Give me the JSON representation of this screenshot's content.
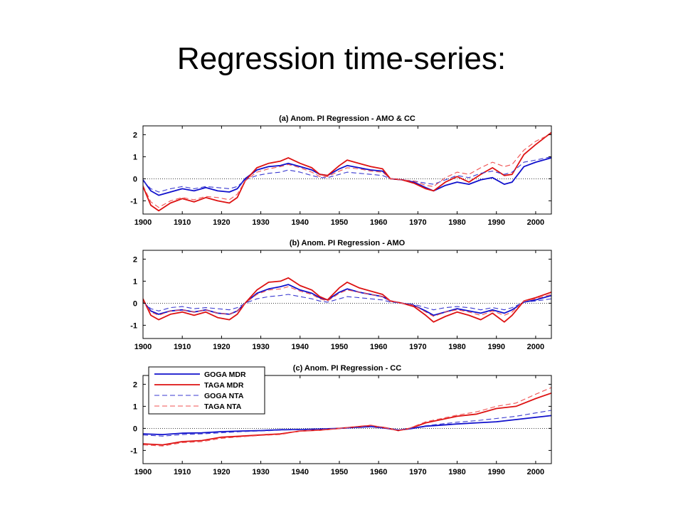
{
  "slide": {
    "title": "Regression time-series:"
  },
  "legend": [
    {
      "label": "GOGA MDR",
      "color": "#1010cc",
      "dash": false
    },
    {
      "label": "TAGA MDR",
      "color": "#dd1111",
      "dash": false
    },
    {
      "label": "GOGA NTA",
      "color": "#3a3ad0",
      "dash": true
    },
    {
      "label": "TAGA NTA",
      "color": "#f05050",
      "dash": true
    }
  ],
  "chart_data": [
    {
      "type": "line",
      "title": "(a) Anom. PI Regression - AMO & CC",
      "xlim": [
        1900,
        2004
      ],
      "ylim": [
        -1.6,
        2.4
      ],
      "xticks": [
        1900,
        1910,
        1920,
        1930,
        1940,
        1950,
        1960,
        1970,
        1980,
        1990,
        2000
      ],
      "yticks": [
        -1,
        0,
        1,
        2
      ],
      "zero_line": "dotted",
      "series": [
        {
          "legend": "GOGA MDR",
          "x": [
            1900,
            1902,
            1904,
            1907,
            1910,
            1913,
            1916,
            1919,
            1922,
            1924,
            1926,
            1929,
            1932,
            1935,
            1937,
            1940,
            1943,
            1945,
            1947,
            1950,
            1952,
            1955,
            1958,
            1961,
            1963,
            1966,
            1969,
            1972,
            1974,
            1977,
            1980,
            1983,
            1986,
            1989,
            1992,
            1994,
            1997,
            2000,
            2004
          ],
          "values": [
            -0.05,
            -0.55,
            -0.75,
            -0.6,
            -0.45,
            -0.55,
            -0.4,
            -0.55,
            -0.6,
            -0.45,
            0.0,
            0.4,
            0.55,
            0.6,
            0.7,
            0.55,
            0.4,
            0.2,
            0.15,
            0.45,
            0.6,
            0.5,
            0.4,
            0.35,
            0.0,
            -0.05,
            -0.15,
            -0.4,
            -0.55,
            -0.3,
            -0.15,
            -0.25,
            -0.05,
            0.05,
            -0.25,
            -0.15,
            0.55,
            0.75,
            0.95
          ]
        },
        {
          "legend": "TAGA MDR",
          "x": [
            1900,
            1902,
            1904,
            1907,
            1910,
            1913,
            1916,
            1919,
            1922,
            1924,
            1926,
            1929,
            1932,
            1935,
            1937,
            1940,
            1943,
            1945,
            1947,
            1950,
            1952,
            1955,
            1958,
            1961,
            1963,
            1966,
            1969,
            1972,
            1974,
            1977,
            1980,
            1983,
            1986,
            1989,
            1992,
            1994,
            1997,
            2000,
            2004
          ],
          "values": [
            -0.35,
            -1.2,
            -1.45,
            -1.1,
            -0.9,
            -1.05,
            -0.85,
            -1.0,
            -1.1,
            -0.85,
            -0.1,
            0.5,
            0.7,
            0.8,
            0.95,
            0.7,
            0.5,
            0.2,
            0.15,
            0.6,
            0.85,
            0.7,
            0.55,
            0.45,
            0.0,
            -0.05,
            -0.2,
            -0.45,
            -0.55,
            -0.15,
            0.1,
            -0.15,
            0.2,
            0.5,
            0.15,
            0.2,
            1.1,
            1.55,
            2.1
          ]
        },
        {
          "legend": "GOGA NTA",
          "x": [
            1900,
            1902,
            1904,
            1907,
            1910,
            1913,
            1916,
            1919,
            1922,
            1924,
            1926,
            1929,
            1932,
            1935,
            1937,
            1940,
            1943,
            1945,
            1947,
            1950,
            1952,
            1955,
            1958,
            1961,
            1963,
            1966,
            1969,
            1972,
            1974,
            1977,
            1980,
            1983,
            1986,
            1989,
            1992,
            1994,
            1997,
            2000,
            2004
          ],
          "values": [
            -0.1,
            -0.45,
            -0.6,
            -0.45,
            -0.35,
            -0.45,
            -0.35,
            -0.4,
            -0.45,
            -0.35,
            -0.05,
            0.15,
            0.25,
            0.3,
            0.4,
            0.3,
            0.15,
            0.05,
            0.05,
            0.2,
            0.3,
            0.25,
            0.2,
            0.15,
            0.0,
            -0.05,
            -0.1,
            -0.2,
            -0.25,
            -0.05,
            0.15,
            0.05,
            0.25,
            0.35,
            0.2,
            0.3,
            0.75,
            0.85,
            1.0
          ]
        },
        {
          "legend": "TAGA NTA",
          "x": [
            1900,
            1902,
            1904,
            1907,
            1910,
            1913,
            1916,
            1919,
            1922,
            1924,
            1926,
            1929,
            1932,
            1935,
            1937,
            1940,
            1943,
            1945,
            1947,
            1950,
            1952,
            1955,
            1958,
            1961,
            1963,
            1966,
            1969,
            1972,
            1974,
            1977,
            1980,
            1983,
            1986,
            1989,
            1992,
            1994,
            1997,
            2000,
            2004
          ],
          "values": [
            -0.3,
            -1.05,
            -1.3,
            -1.0,
            -0.85,
            -0.95,
            -0.8,
            -0.85,
            -0.95,
            -0.7,
            -0.1,
            0.3,
            0.45,
            0.55,
            0.65,
            0.5,
            0.3,
            0.1,
            0.1,
            0.35,
            0.5,
            0.45,
            0.35,
            0.3,
            0.0,
            -0.05,
            -0.1,
            -0.3,
            -0.35,
            0.05,
            0.3,
            0.2,
            0.5,
            0.75,
            0.55,
            0.65,
            1.3,
            1.7,
            2.05
          ]
        }
      ]
    },
    {
      "type": "line",
      "title": "(b) Anom. PI Regression - AMO",
      "xlim": [
        1900,
        2004
      ],
      "ylim": [
        -1.6,
        2.4
      ],
      "xticks": [
        1900,
        1910,
        1920,
        1930,
        1940,
        1950,
        1960,
        1970,
        1980,
        1990,
        2000
      ],
      "yticks": [
        -1,
        0,
        1,
        2
      ],
      "zero_line": "dotted",
      "series": [
        {
          "legend": "GOGA MDR",
          "x": [
            1900,
            1902,
            1904,
            1907,
            1910,
            1913,
            1916,
            1919,
            1922,
            1924,
            1926,
            1929,
            1932,
            1935,
            1937,
            1940,
            1943,
            1945,
            1947,
            1950,
            1952,
            1955,
            1958,
            1961,
            1963,
            1966,
            1969,
            1972,
            1974,
            1977,
            1980,
            1983,
            1986,
            1989,
            1992,
            1994,
            1997,
            2000,
            2004
          ],
          "values": [
            0.1,
            -0.35,
            -0.5,
            -0.35,
            -0.3,
            -0.4,
            -0.3,
            -0.45,
            -0.5,
            -0.35,
            0.0,
            0.45,
            0.65,
            0.75,
            0.85,
            0.6,
            0.45,
            0.25,
            0.15,
            0.5,
            0.65,
            0.5,
            0.4,
            0.3,
            0.1,
            0.0,
            -0.1,
            -0.35,
            -0.55,
            -0.4,
            -0.25,
            -0.35,
            -0.45,
            -0.3,
            -0.45,
            -0.3,
            0.05,
            0.15,
            0.35
          ]
        },
        {
          "legend": "TAGA MDR",
          "x": [
            1900,
            1902,
            1904,
            1907,
            1910,
            1913,
            1916,
            1919,
            1922,
            1924,
            1926,
            1929,
            1932,
            1935,
            1937,
            1940,
            1943,
            1945,
            1947,
            1950,
            1952,
            1955,
            1958,
            1961,
            1963,
            1966,
            1969,
            1972,
            1974,
            1977,
            1980,
            1983,
            1986,
            1989,
            1992,
            1994,
            1997,
            2000,
            2004
          ],
          "values": [
            0.2,
            -0.55,
            -0.75,
            -0.5,
            -0.4,
            -0.55,
            -0.4,
            -0.65,
            -0.75,
            -0.5,
            0.0,
            0.6,
            0.95,
            1.0,
            1.15,
            0.8,
            0.6,
            0.3,
            0.15,
            0.7,
            0.95,
            0.7,
            0.55,
            0.4,
            0.1,
            0.0,
            -0.15,
            -0.55,
            -0.85,
            -0.6,
            -0.4,
            -0.55,
            -0.75,
            -0.45,
            -0.85,
            -0.55,
            0.1,
            0.25,
            0.5
          ]
        },
        {
          "legend": "GOGA NTA",
          "x": [
            1900,
            1902,
            1904,
            1907,
            1910,
            1913,
            1916,
            1919,
            1922,
            1924,
            1926,
            1929,
            1932,
            1935,
            1937,
            1940,
            1943,
            1945,
            1947,
            1950,
            1952,
            1955,
            1958,
            1961,
            1963,
            1966,
            1969,
            1972,
            1974,
            1977,
            1980,
            1983,
            1986,
            1989,
            1992,
            1994,
            1997,
            2000,
            2004
          ],
          "values": [
            0.05,
            -0.25,
            -0.35,
            -0.2,
            -0.15,
            -0.25,
            -0.2,
            -0.25,
            -0.3,
            -0.2,
            0.0,
            0.2,
            0.3,
            0.35,
            0.4,
            0.3,
            0.2,
            0.1,
            0.05,
            0.2,
            0.3,
            0.25,
            0.2,
            0.15,
            0.05,
            0.0,
            -0.05,
            -0.2,
            -0.3,
            -0.2,
            -0.15,
            -0.2,
            -0.3,
            -0.2,
            -0.3,
            -0.2,
            0.05,
            0.1,
            0.2
          ]
        },
        {
          "legend": "TAGA NTA",
          "x": [
            1900,
            1902,
            1904,
            1907,
            1910,
            1913,
            1916,
            1919,
            1922,
            1924,
            1926,
            1929,
            1932,
            1935,
            1937,
            1940,
            1943,
            1945,
            1947,
            1950,
            1952,
            1955,
            1958,
            1961,
            1963,
            1966,
            1969,
            1972,
            1974,
            1977,
            1980,
            1983,
            1986,
            1989,
            1992,
            1994,
            1997,
            2000,
            2004
          ],
          "values": [
            0.1,
            -0.4,
            -0.55,
            -0.35,
            -0.3,
            -0.4,
            -0.3,
            -0.45,
            -0.5,
            -0.35,
            0.0,
            0.4,
            0.6,
            0.65,
            0.75,
            0.55,
            0.4,
            0.2,
            0.1,
            0.45,
            0.6,
            0.5,
            0.4,
            0.3,
            0.1,
            0.0,
            -0.1,
            -0.4,
            -0.6,
            -0.4,
            -0.3,
            -0.4,
            -0.55,
            -0.35,
            -0.55,
            -0.4,
            0.1,
            0.2,
            0.4
          ]
        }
      ]
    },
    {
      "type": "line",
      "title": "(c) Anom. PI Regression - CC",
      "xlim": [
        1900,
        2004
      ],
      "ylim": [
        -1.6,
        2.4
      ],
      "xticks": [
        1900,
        1910,
        1920,
        1930,
        1940,
        1950,
        1960,
        1970,
        1980,
        1990,
        2000
      ],
      "yticks": [
        -1,
        0,
        1,
        2
      ],
      "zero_line": "dotted",
      "legend_position": "top-left",
      "series": [
        {
          "legend": "GOGA MDR",
          "x": [
            1900,
            1905,
            1910,
            1915,
            1920,
            1925,
            1930,
            1935,
            1940,
            1945,
            1950,
            1955,
            1958,
            1962,
            1965,
            1968,
            1972,
            1976,
            1980,
            1985,
            1990,
            1995,
            2000,
            2004
          ],
          "values": [
            -0.25,
            -0.28,
            -0.22,
            -0.2,
            -0.15,
            -0.12,
            -0.1,
            -0.06,
            -0.05,
            -0.03,
            0.0,
            0.05,
            0.08,
            0.0,
            -0.08,
            -0.02,
            0.1,
            0.15,
            0.2,
            0.25,
            0.3,
            0.4,
            0.5,
            0.58
          ]
        },
        {
          "legend": "TAGA MDR",
          "x": [
            1900,
            1905,
            1910,
            1915,
            1920,
            1925,
            1930,
            1935,
            1940,
            1945,
            1950,
            1955,
            1958,
            1962,
            1965,
            1968,
            1972,
            1976,
            1980,
            1985,
            1990,
            1995,
            2000,
            2004
          ],
          "values": [
            -0.7,
            -0.75,
            -0.6,
            -0.55,
            -0.4,
            -0.35,
            -0.3,
            -0.25,
            -0.12,
            -0.08,
            0.0,
            0.08,
            0.12,
            0.02,
            -0.1,
            0.0,
            0.25,
            0.4,
            0.55,
            0.65,
            0.9,
            1.0,
            1.35,
            1.6
          ]
        },
        {
          "legend": "GOGA NTA",
          "x": [
            1900,
            1905,
            1910,
            1915,
            1920,
            1925,
            1930,
            1935,
            1940,
            1945,
            1950,
            1955,
            1958,
            1962,
            1965,
            1968,
            1972,
            1976,
            1980,
            1985,
            1990,
            1995,
            2000,
            2004
          ],
          "values": [
            -0.3,
            -0.35,
            -0.28,
            -0.25,
            -0.2,
            -0.15,
            -0.12,
            -0.08,
            -0.05,
            -0.02,
            0.0,
            0.05,
            0.1,
            0.02,
            -0.06,
            0.0,
            0.12,
            0.2,
            0.28,
            0.35,
            0.45,
            0.55,
            0.7,
            0.82
          ]
        },
        {
          "legend": "TAGA NTA",
          "x": [
            1900,
            1905,
            1910,
            1915,
            1920,
            1925,
            1930,
            1935,
            1940,
            1945,
            1950,
            1955,
            1958,
            1962,
            1965,
            1968,
            1972,
            1976,
            1980,
            1985,
            1990,
            1995,
            2000,
            2004
          ],
          "values": [
            -0.75,
            -0.8,
            -0.65,
            -0.6,
            -0.45,
            -0.38,
            -0.32,
            -0.28,
            -0.12,
            -0.08,
            0.0,
            0.1,
            0.15,
            0.02,
            -0.1,
            0.02,
            0.3,
            0.45,
            0.6,
            0.75,
            1.0,
            1.15,
            1.55,
            1.85
          ]
        }
      ]
    }
  ]
}
